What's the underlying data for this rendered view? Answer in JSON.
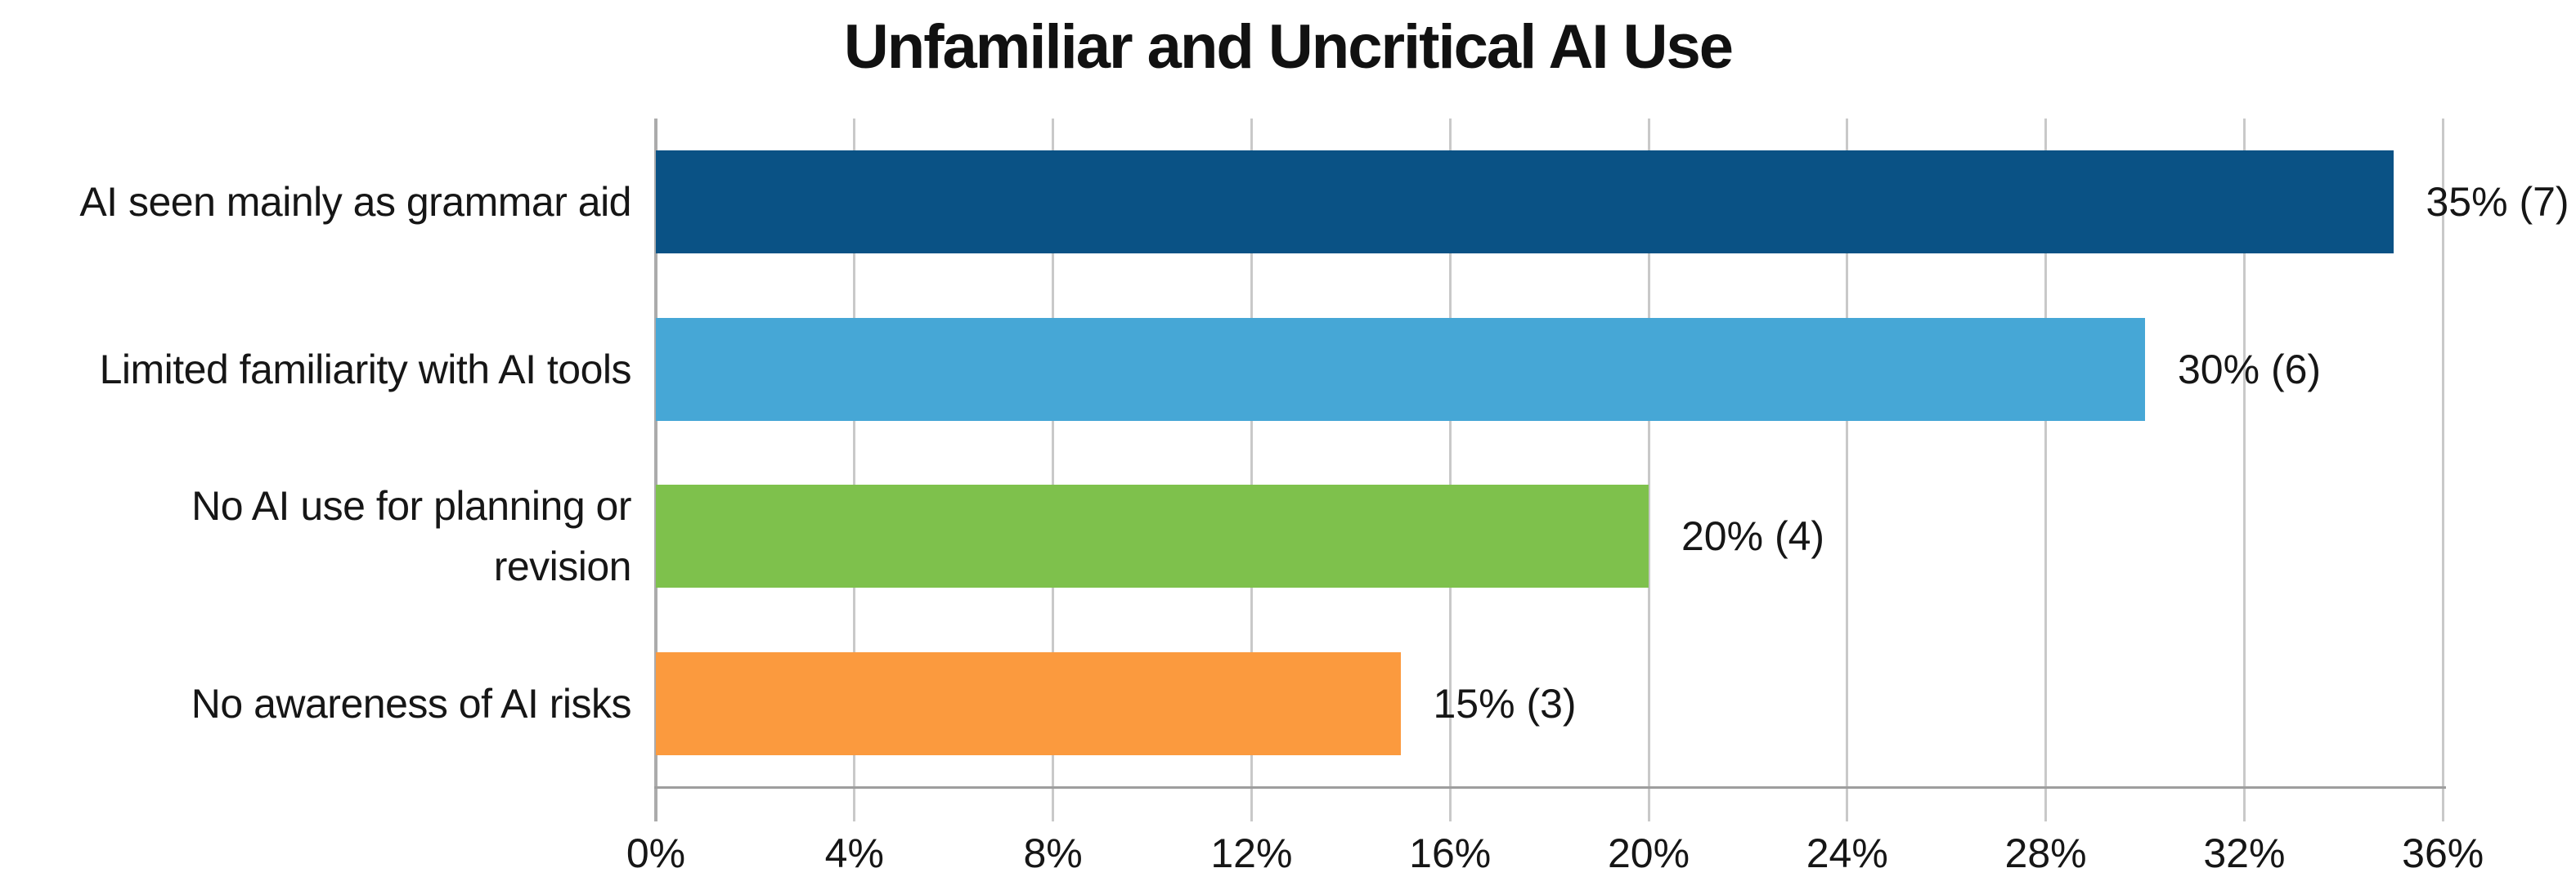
{
  "page": {
    "background": "#FFFFFF"
  },
  "chart_data": {
    "type": "bar",
    "orientation": "horizontal",
    "title": "Unfamiliar and Uncritical AI Use",
    "categories": [
      "AI seen mainly as grammar aid",
      "Limited familiarity with AI tools",
      "No AI use for planning or revision",
      "No awareness of AI risks"
    ],
    "category_label_lines": [
      [
        "AI seen mainly as grammar aid"
      ],
      [
        "Limited familiarity with AI tools"
      ],
      [
        "No AI use for planning or",
        "revision"
      ],
      [
        "No awareness of AI risks"
      ]
    ],
    "values": [
      35,
      30,
      20,
      15
    ],
    "counts": [
      7,
      6,
      4,
      3
    ],
    "data_labels": [
      "35% (7)",
      "30% (6)",
      "20% (4)",
      "15% (3)"
    ],
    "bar_colors": [
      "#0A5285",
      "#46A7D6",
      "#7EC14C",
      "#FB9A3E"
    ],
    "xlabel": "",
    "ylabel": "",
    "xlim": [
      0,
      36
    ],
    "x_tick_values": [
      0,
      4,
      8,
      12,
      16,
      20,
      24,
      28,
      32,
      36
    ],
    "x_tick_labels": [
      "0%",
      "4%",
      "8%",
      "12%",
      "16%",
      "20%",
      "24%",
      "28%",
      "32%",
      "36%"
    ],
    "grid": true,
    "legend": "none",
    "colors": {
      "gridline": "#C9C9C9",
      "zero_axis_line": "#ABABAB",
      "x_axis_line": "#9E9E9E",
      "text": "#161616"
    }
  }
}
